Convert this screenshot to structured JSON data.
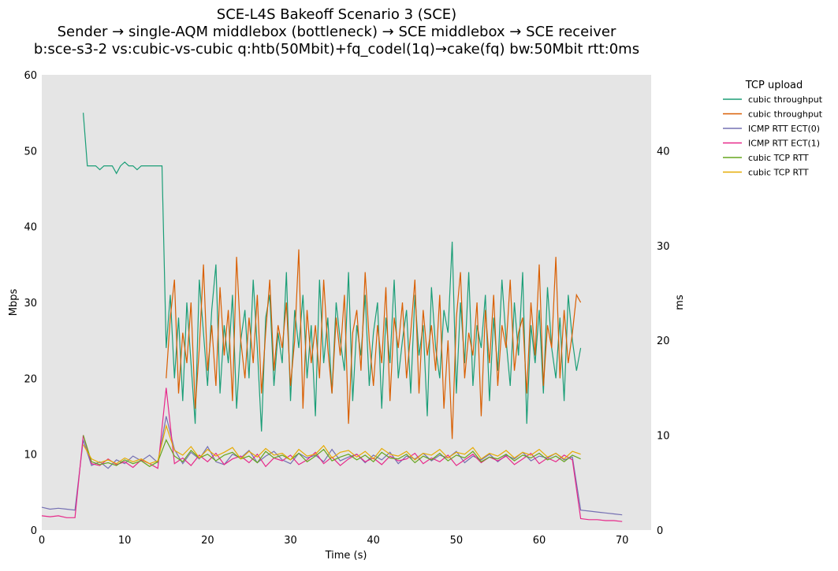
{
  "chart_data": {
    "type": "line",
    "title": [
      "SCE-L4S Bakeoff Scenario 3 (SCE)",
      "Sender → single-AQM middlebox (bottleneck) → SCE middlebox → SCE receiver",
      "b:sce-s3-2 vs:cubic-vs-cubic q:htb(50Mbit)+fq_codel(1q)→cake(fq) bw:50Mbit rtt:0ms"
    ],
    "xlabel": "Time (s)",
    "ylabel": "Mbps",
    "y2label": "ms",
    "xlim": [
      0,
      73.5
    ],
    "ylim": [
      0,
      60
    ],
    "y2lim": [
      0,
      48
    ],
    "xticks": [
      0,
      10,
      20,
      30,
      40,
      50,
      60,
      70
    ],
    "yticks": [
      0,
      10,
      20,
      30,
      40,
      50,
      60
    ],
    "y2ticks": [
      0,
      10,
      20,
      30,
      40
    ],
    "grid": false,
    "legend": {
      "title": "TCP upload",
      "placement": "outside-right"
    },
    "series": [
      {
        "name": "cubic throughput",
        "axis": "left",
        "color": "#1b9e77",
        "x0": 5,
        "dx": 0.5,
        "values": [
          55,
          48,
          48,
          48,
          47.5,
          48,
          48,
          48,
          47,
          48,
          48.5,
          48,
          48,
          47.5,
          48,
          48,
          48,
          48,
          48,
          48,
          24,
          31,
          20,
          28,
          17,
          30,
          22,
          14,
          33,
          26,
          19,
          29,
          35,
          18,
          27,
          22,
          31,
          16,
          25,
          29,
          20,
          33,
          24,
          13,
          28,
          31,
          19,
          26,
          22,
          34,
          17,
          29,
          24,
          31,
          20,
          27,
          15,
          33,
          22,
          28,
          18,
          30,
          25,
          21,
          34,
          17,
          27,
          23,
          31,
          19,
          26,
          30,
          16,
          28,
          22,
          33,
          20,
          25,
          29,
          18,
          31,
          23,
          27,
          15,
          32,
          24,
          20,
          29,
          26,
          38,
          18,
          30,
          22,
          34,
          19,
          27,
          24,
          31,
          17,
          28,
          21,
          33,
          25,
          19,
          30,
          23,
          34,
          14,
          27,
          22,
          29,
          18,
          32,
          24,
          20,
          28,
          17,
          31,
          25,
          21,
          24
        ]
      },
      {
        "name": "cubic throughput",
        "axis": "left",
        "color": "#d95f02",
        "x0": 15,
        "dx": 0.5,
        "values": [
          20,
          28,
          33,
          18,
          26,
          22,
          30,
          16,
          24,
          35,
          21,
          27,
          19,
          32,
          23,
          29,
          17,
          36,
          25,
          20,
          28,
          22,
          31,
          18,
          26,
          33,
          21,
          27,
          24,
          30,
          19,
          25,
          37,
          16,
          29,
          22,
          27,
          20,
          33,
          24,
          18,
          28,
          23,
          31,
          14,
          26,
          29,
          21,
          34,
          25,
          19,
          27,
          22,
          32,
          17,
          28,
          24,
          30,
          20,
          26,
          33,
          18,
          29,
          23,
          27,
          21,
          31,
          16,
          25,
          12,
          28,
          34,
          20,
          26,
          23,
          30,
          15,
          29,
          22,
          31,
          19,
          27,
          24,
          33,
          21,
          26,
          28,
          18,
          30,
          23,
          35,
          19,
          27,
          24,
          36,
          20,
          29,
          22,
          26,
          31,
          30
        ]
      },
      {
        "name": "ICMP RTT ECT(0)",
        "axis": "right",
        "color": "#7570b3",
        "x0": 0,
        "dx": 1,
        "values": [
          2.4,
          2.2,
          2.3,
          2.2,
          2.1,
          9.5,
          6.8,
          7.2,
          6.5,
          7.4,
          7.0,
          7.8,
          7.3,
          7.9,
          7.1,
          12,
          8.5,
          7.0,
          8.2,
          7.5,
          8.8,
          7.2,
          6.9,
          8.0,
          7.6,
          8.4,
          7.1,
          7.8,
          8.3,
          7.4,
          7.0,
          8.1,
          7.6,
          7.9,
          7.2,
          8.5,
          7.3,
          7.7,
          8.0,
          7.1,
          7.9,
          7.4,
          8.2,
          7.0,
          7.8,
          7.5,
          8.1,
          7.3,
          7.9,
          7.6,
          8.3,
          7.1,
          7.8,
          7.4,
          8.0,
          7.2,
          7.9,
          7.5,
          8.2,
          7.3,
          7.8,
          7.6,
          8.1,
          7.4,
          7.7,
          2.1,
          2.0,
          1.9,
          1.8,
          1.7,
          1.6
        ]
      },
      {
        "name": "ICMP RTT ECT(1)",
        "axis": "right",
        "color": "#e7298a",
        "x0": 0,
        "dx": 1,
        "values": [
          1.5,
          1.4,
          1.5,
          1.3,
          1.3,
          10,
          7.0,
          6.8,
          7.5,
          6.9,
          7.2,
          6.6,
          7.4,
          7.0,
          6.5,
          15,
          7.0,
          7.6,
          6.8,
          7.9,
          7.2,
          8.1,
          6.9,
          7.5,
          7.8,
          7.1,
          8.0,
          6.7,
          7.6,
          7.3,
          7.9,
          6.9,
          7.4,
          8.2,
          7.0,
          7.7,
          6.8,
          7.5,
          8.0,
          7.2,
          7.6,
          6.9,
          7.8,
          7.3,
          7.5,
          8.1,
          7.0,
          7.6,
          7.2,
          7.9,
          6.8,
          7.4,
          8.0,
          7.1,
          7.7,
          7.3,
          7.8,
          6.9,
          7.5,
          8.1,
          7.0,
          7.6,
          7.2,
          7.9,
          7.4,
          1.2,
          1.1,
          1.1,
          1.0,
          1.0,
          0.9
        ]
      },
      {
        "name": "cubic TCP RTT",
        "axis": "right",
        "color": "#66a61e",
        "x0": 5,
        "dx": 1,
        "values": [
          10,
          7.2,
          6.9,
          7.1,
          6.8,
          7.4,
          7.0,
          7.3,
          6.7,
          7.2,
          9.5,
          7.8,
          7.2,
          8.4,
          7.6,
          8.0,
          7.3,
          7.9,
          8.2,
          7.5,
          7.8,
          7.1,
          8.3,
          7.6,
          7.9,
          7.4,
          8.1,
          7.2,
          7.8,
          8.5,
          7.3,
          7.7,
          8.0,
          7.4,
          7.9,
          7.2,
          8.2,
          7.6,
          7.5,
          8.0,
          7.1,
          7.8,
          7.4,
          8.1,
          7.3,
          7.9,
          7.6,
          8.3,
          7.2,
          7.7,
          7.5,
          8.0,
          7.3,
          7.9,
          7.6,
          8.1,
          7.4,
          7.8,
          7.2,
          7.9,
          7.5
        ]
      },
      {
        "name": "cubic TCP RTT",
        "axis": "right",
        "color": "#e6ab02",
        "x0": 5,
        "dx": 1,
        "values": [
          9,
          7.5,
          7.1,
          7.4,
          7.0,
          7.6,
          7.2,
          7.5,
          7.0,
          7.3,
          11,
          8.4,
          7.9,
          8.8,
          7.6,
          8.5,
          7.8,
          8.2,
          8.7,
          7.5,
          8.3,
          7.7,
          8.6,
          7.9,
          8.1,
          7.4,
          8.5,
          7.8,
          8.0,
          8.9,
          7.6,
          8.2,
          8.4,
          7.7,
          8.3,
          7.5,
          8.6,
          8.0,
          7.8,
          8.3,
          7.4,
          8.1,
          7.9,
          8.5,
          7.6,
          8.2,
          8.0,
          8.7,
          7.5,
          8.1,
          7.8,
          8.4,
          7.6,
          8.2,
          7.9,
          8.5,
          7.7,
          8.1,
          7.5,
          8.3,
          8.0
        ]
      }
    ]
  }
}
